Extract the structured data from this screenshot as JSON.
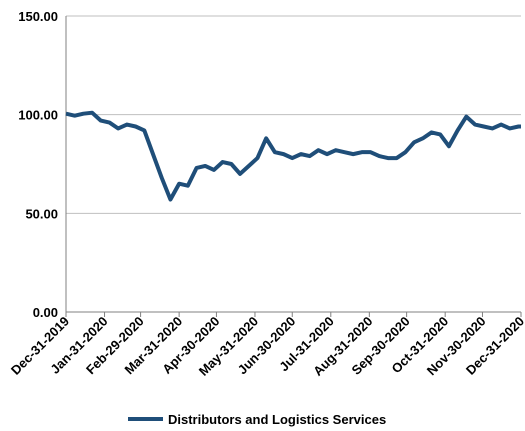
{
  "chart_data": {
    "type": "line",
    "x": [
      "2019-12-31",
      "2020-01-07",
      "2020-01-14",
      "2020-01-21",
      "2020-01-28",
      "2020-02-04",
      "2020-02-11",
      "2020-02-18",
      "2020-02-25",
      "2020-03-03",
      "2020-03-10",
      "2020-03-17",
      "2020-03-24",
      "2020-03-31",
      "2020-04-07",
      "2020-04-14",
      "2020-04-21",
      "2020-04-28",
      "2020-05-05",
      "2020-05-12",
      "2020-05-19",
      "2020-05-26",
      "2020-06-02",
      "2020-06-09",
      "2020-06-16",
      "2020-06-23",
      "2020-06-30",
      "2020-07-07",
      "2020-07-14",
      "2020-07-21",
      "2020-07-28",
      "2020-08-04",
      "2020-08-11",
      "2020-08-18",
      "2020-08-25",
      "2020-09-01",
      "2020-09-08",
      "2020-09-15",
      "2020-09-22",
      "2020-09-29",
      "2020-10-06",
      "2020-10-13",
      "2020-10-20",
      "2020-10-27",
      "2020-11-03",
      "2020-11-10",
      "2020-11-17",
      "2020-11-24",
      "2020-12-01",
      "2020-12-08",
      "2020-12-15",
      "2020-12-22",
      "2020-12-29",
      "2020-12-31"
    ],
    "series": [
      {
        "name": "Distributors and Logistics Services",
        "color": "#1f4e79",
        "values": [
          100.5,
          99.5,
          100.5,
          101,
          97,
          96,
          93,
          95,
          94,
          92,
          80,
          68,
          57,
          65,
          64,
          73,
          74,
          72,
          76,
          75,
          70,
          74,
          78,
          88,
          81,
          80,
          78,
          80,
          79,
          82,
          80,
          82,
          81,
          80,
          81,
          81,
          79,
          78,
          78,
          81,
          86,
          88,
          91,
          90,
          84,
          92,
          99,
          95,
          94,
          93,
          95,
          93,
          94,
          94
        ]
      }
    ],
    "xlim": [
      "2019-12-31",
      "2020-12-31"
    ],
    "xticks": [
      {
        "value": "2019-12-31",
        "label": "Dec-31-2019"
      },
      {
        "value": "2020-01-31",
        "label": "Jan-31-2020"
      },
      {
        "value": "2020-02-29",
        "label": "Feb-29-2020"
      },
      {
        "value": "2020-03-31",
        "label": "Mar-31-2020"
      },
      {
        "value": "2020-04-30",
        "label": "Apr-30-2020"
      },
      {
        "value": "2020-05-31",
        "label": "May-31-2020"
      },
      {
        "value": "2020-06-30",
        "label": "Jun-30-2020"
      },
      {
        "value": "2020-07-31",
        "label": "Jul-31-2020"
      },
      {
        "value": "2020-08-31",
        "label": "Aug-31-2020"
      },
      {
        "value": "2020-09-30",
        "label": "Sep-30-2020"
      },
      {
        "value": "2020-10-31",
        "label": "Oct-31-2020"
      },
      {
        "value": "2020-11-30",
        "label": "Nov-30-2020"
      },
      {
        "value": "2020-12-31",
        "label": "Dec-31-2020"
      }
    ],
    "ylim": [
      0,
      150
    ],
    "yticks": [
      {
        "value": 0,
        "label": "0.00"
      },
      {
        "value": 50,
        "label": "50.00"
      },
      {
        "value": 100,
        "label": "100.00"
      },
      {
        "value": 150,
        "label": "150.00"
      }
    ],
    "grid": true,
    "legend": "bottom"
  }
}
